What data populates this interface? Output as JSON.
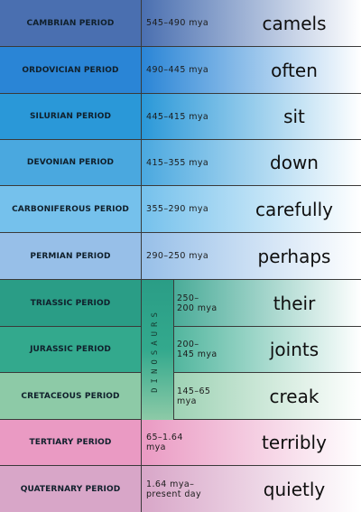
{
  "dinosaurs_label": "DINOSAURS",
  "rows": [
    {
      "name": "CAMBRIAN PERIOD",
      "dates": "545–490 mya",
      "word": "camels",
      "color": "#4a6fb0"
    },
    {
      "name": "ORDOVICIAN PERIOD",
      "dates": "490–445 mya",
      "word": "often",
      "color": "#2a85d6"
    },
    {
      "name": "SILURIAN PERIOD",
      "dates": "445–415 mya",
      "word": "sit",
      "color": "#2a98d8"
    },
    {
      "name": "DEVONIAN PERIOD",
      "dates": "415–355 mya",
      "word": "down",
      "color": "#4aa8df"
    },
    {
      "name": "CARBONIFEROUS PERIOD",
      "dates": "355–290 mya",
      "word": "carefully",
      "color": "#75c1ec"
    },
    {
      "name": "PERMIAN PERIOD",
      "dates": "290–250 mya",
      "word": "perhaps",
      "color": "#97bfe8"
    },
    {
      "name": "TRIASSIC PERIOD",
      "dates": "250–\n200 mya",
      "word": "their",
      "color": "#2a9d86"
    },
    {
      "name": "JURASSIC PERIOD",
      "dates": "200–\n145 mya",
      "word": "joints",
      "color": "#33a98d"
    },
    {
      "name": "CRETACEOUS PERIOD",
      "dates": "145–65\nmya",
      "word": "creak",
      "color": "#8dcaa7"
    },
    {
      "name": "TERTIARY PERIOD",
      "dates": "65–1.64\nmya",
      "word": "terribly",
      "color": "#ea9ac3"
    },
    {
      "name": "QUATERNARY PERIOD",
      "dates": "1.64 mya–\npresent day",
      "word": "quietly",
      "color": "#d8a6c8"
    }
  ]
}
